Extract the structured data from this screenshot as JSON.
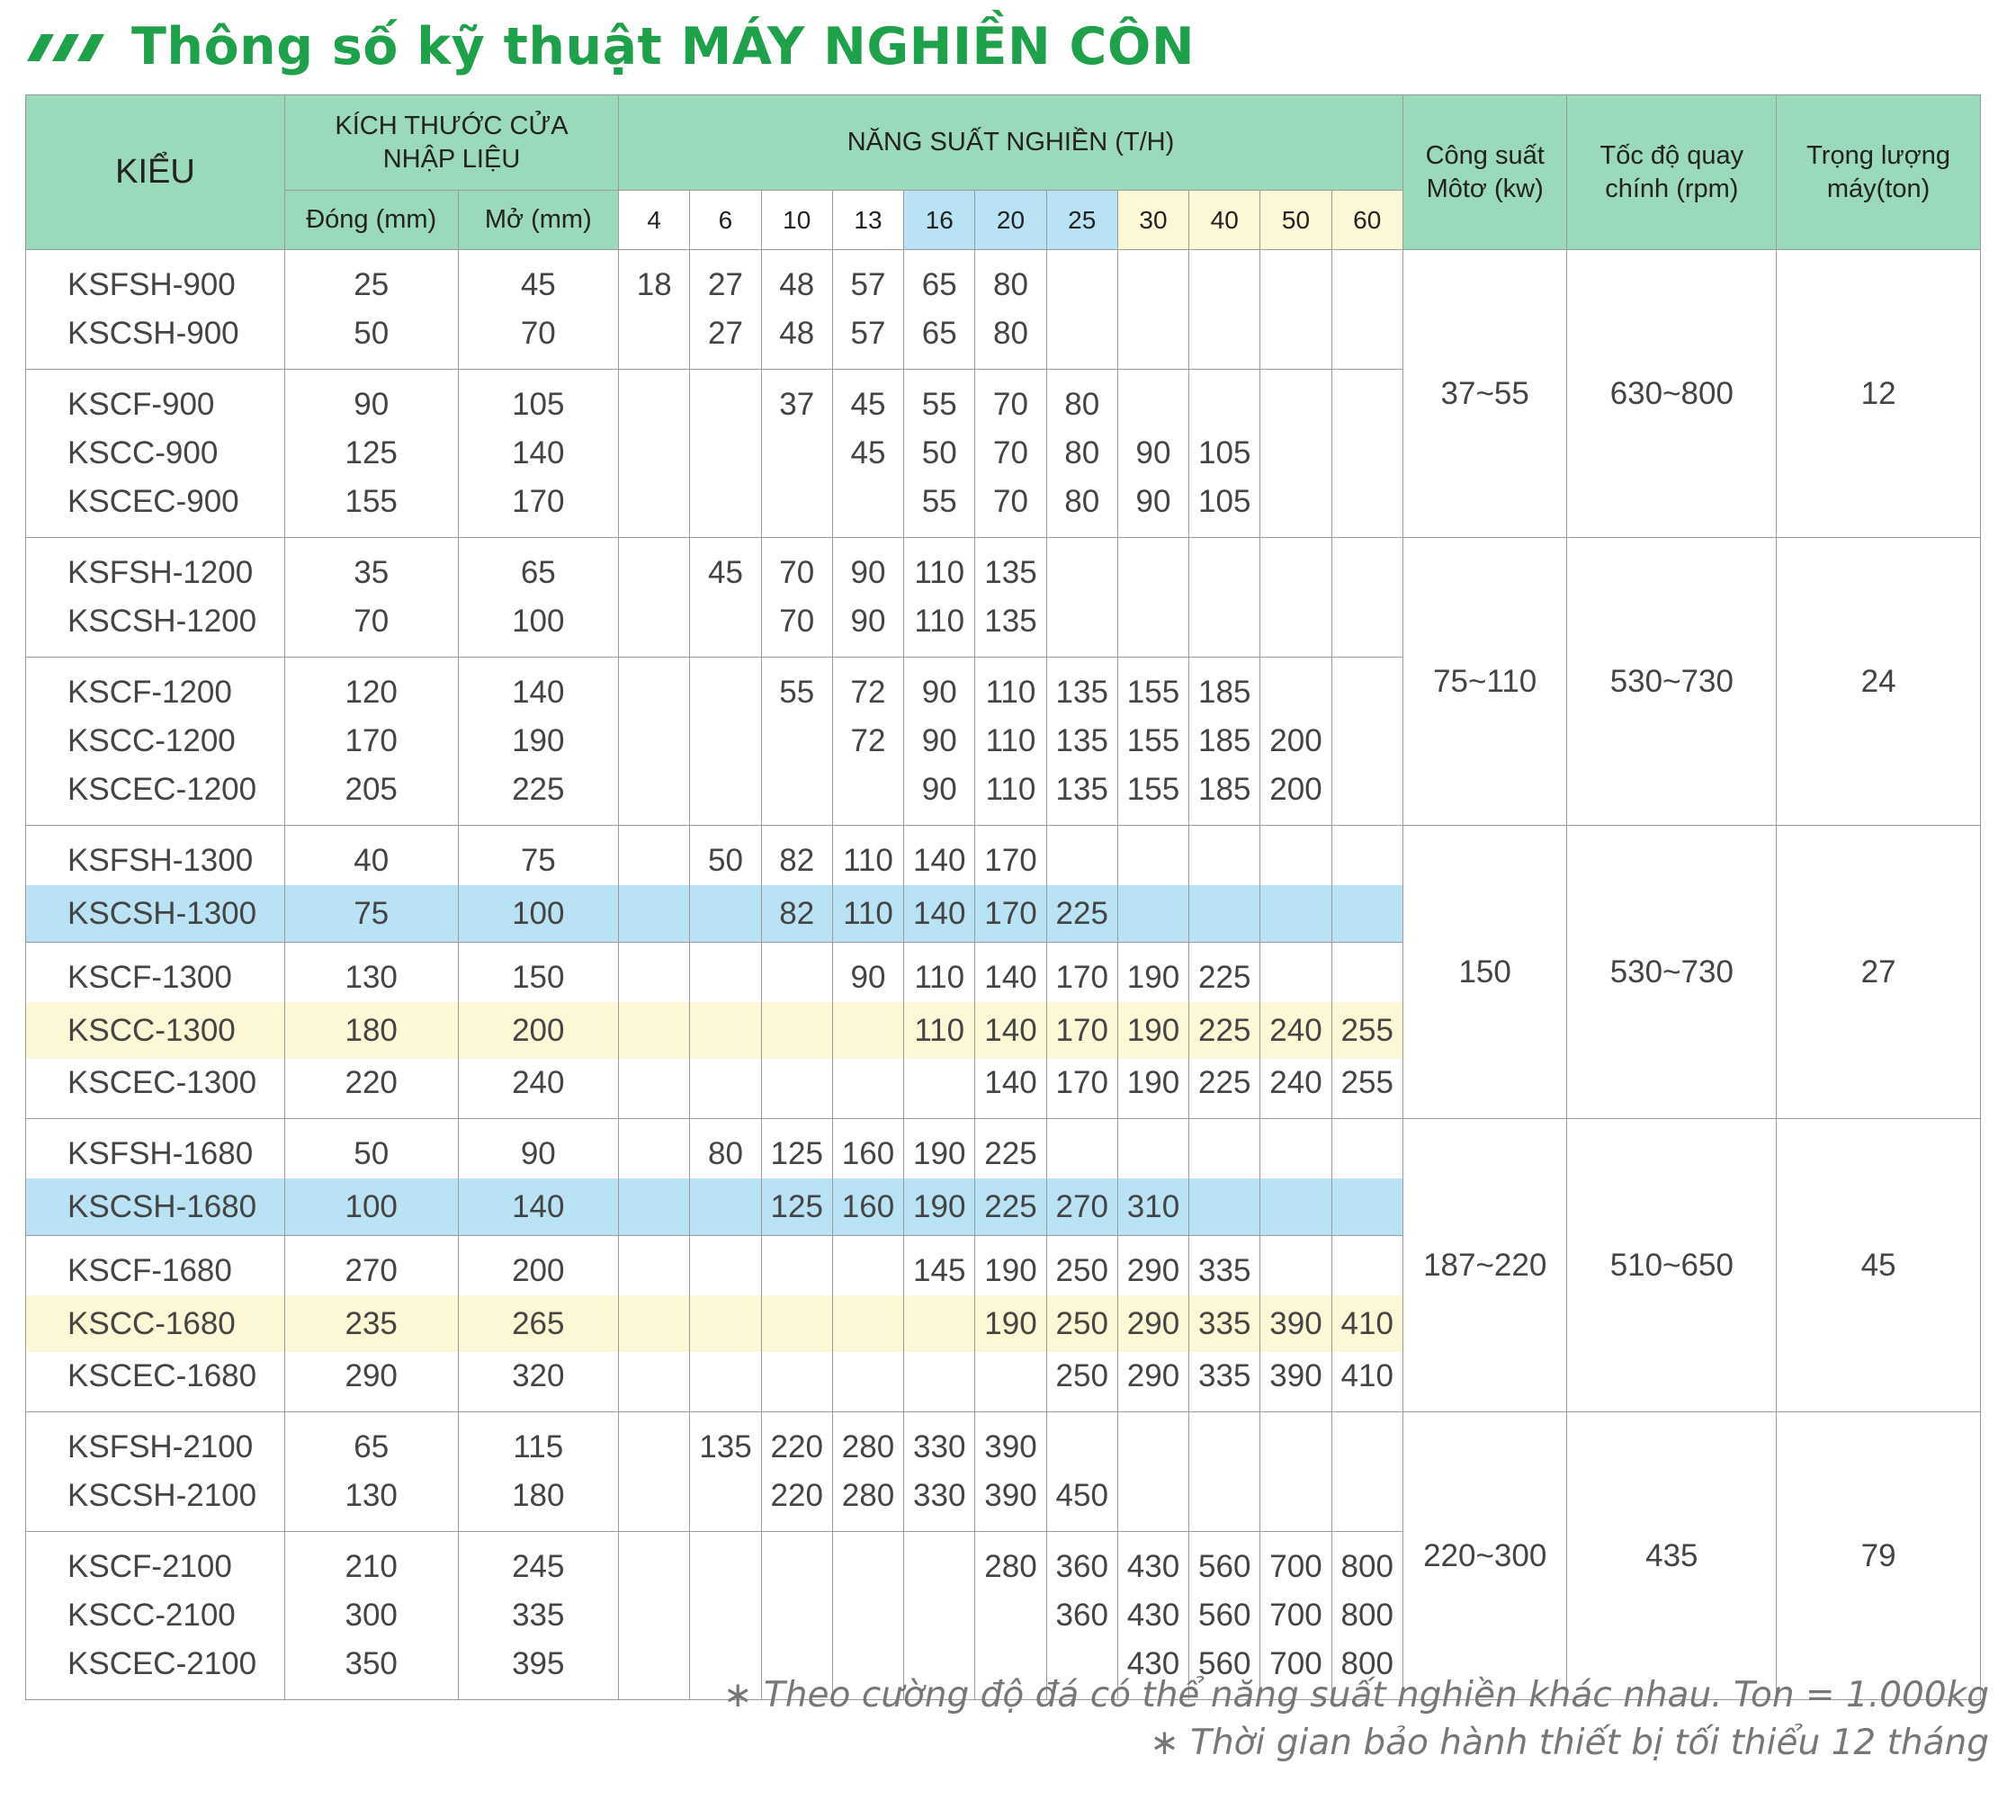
{
  "title": "Thông số kỹ thuật MÁY NGHIỀN CÔN",
  "colors": {
    "header_green": "#9ad9b9",
    "title_green": "#1fa04b",
    "highlight_blue": "#b9e3f5",
    "highlight_yellow": "#fcf7d5"
  },
  "header": {
    "model": "KIỂU",
    "feed_opening": "KÍCH THƯỚC CỬA NHẬP LIỆU",
    "closed": "Đóng (mm)",
    "open": "Mở (mm)",
    "capacity": "NĂNG SUẤT NGHIỀN (T/H)",
    "motor": "Công suất Môtơ (kw)",
    "speed": "Tốc độ quay chính (rpm)",
    "weight": "Trọng lượng máy(ton)"
  },
  "throughput": [
    {
      "label": "4",
      "tint": "none"
    },
    {
      "label": "6",
      "tint": "none"
    },
    {
      "label": "10",
      "tint": "none"
    },
    {
      "label": "13",
      "tint": "none"
    },
    {
      "label": "16",
      "tint": "blue"
    },
    {
      "label": "20",
      "tint": "blue"
    },
    {
      "label": "25",
      "tint": "blue"
    },
    {
      "label": "30",
      "tint": "yellow"
    },
    {
      "label": "40",
      "tint": "yellow"
    },
    {
      "label": "50",
      "tint": "yellow"
    },
    {
      "label": "60",
      "tint": "yellow"
    }
  ],
  "groups": [
    {
      "motor": "37~55",
      "speed": "630~800",
      "weight": "12",
      "subgroups": [
        {
          "rows": [
            {
              "model": "KSFSH-900",
              "closed": "25",
              "open": "45",
              "hl": "none",
              "cap": [
                "18",
                "27",
                "48",
                "57",
                "65",
                "80",
                "",
                "",
                "",
                "",
                ""
              ]
            },
            {
              "model": "KSCSH-900",
              "closed": "50",
              "open": "70",
              "hl": "none",
              "cap": [
                "",
                "27",
                "48",
                "57",
                "65",
                "80",
                "",
                "",
                "",
                "",
                ""
              ]
            }
          ]
        },
        {
          "rows": [
            {
              "model": "KSCF-900",
              "closed": "90",
              "open": "105",
              "hl": "none",
              "cap": [
                "",
                "",
                "37",
                "45",
                "55",
                "70",
                "80",
                "",
                "",
                "",
                ""
              ]
            },
            {
              "model": "KSCC-900",
              "closed": "125",
              "open": "140",
              "hl": "none",
              "cap": [
                "",
                "",
                "",
                "45",
                "50",
                "70",
                "80",
                "90",
                "105",
                "",
                ""
              ]
            },
            {
              "model": "KSCEC-900",
              "closed": "155",
              "open": "170",
              "hl": "none",
              "cap": [
                "",
                "",
                "",
                "",
                "55",
                "70",
                "80",
                "90",
                "105",
                "",
                ""
              ]
            }
          ]
        }
      ]
    },
    {
      "motor": "75~110",
      "speed": "530~730",
      "weight": "24",
      "subgroups": [
        {
          "rows": [
            {
              "model": "KSFSH-1200",
              "closed": "35",
              "open": "65",
              "hl": "none",
              "cap": [
                "",
                "45",
                "70",
                "90",
                "110",
                "135",
                "",
                "",
                "",
                "",
                ""
              ]
            },
            {
              "model": "KSCSH-1200",
              "closed": "70",
              "open": "100",
              "hl": "none",
              "cap": [
                "",
                "",
                "70",
                "90",
                "110",
                "135",
                "",
                "",
                "",
                "",
                ""
              ]
            }
          ]
        },
        {
          "rows": [
            {
              "model": "KSCF-1200",
              "closed": "120",
              "open": "140",
              "hl": "none",
              "cap": [
                "",
                "",
                "55",
                "72",
                "90",
                "110",
                "135",
                "155",
                "185",
                "",
                ""
              ]
            },
            {
              "model": "KSCC-1200",
              "closed": "170",
              "open": "190",
              "hl": "none",
              "cap": [
                "",
                "",
                "",
                "72",
                "90",
                "110",
                "135",
                "155",
                "185",
                "200",
                ""
              ]
            },
            {
              "model": "KSCEC-1200",
              "closed": "205",
              "open": "225",
              "hl": "none",
              "cap": [
                "",
                "",
                "",
                "",
                "90",
                "110",
                "135",
                "155",
                "185",
                "200",
                ""
              ]
            }
          ]
        }
      ]
    },
    {
      "motor": "150",
      "speed": "530~730",
      "weight": "27",
      "subgroups": [
        {
          "rows": [
            {
              "model": "KSFSH-1300",
              "closed": "40",
              "open": "75",
              "hl": "none",
              "cap": [
                "",
                "50",
                "82",
                "110",
                "140",
                "170",
                "",
                "",
                "",
                "",
                ""
              ]
            },
            {
              "model": "KSCSH-1300",
              "closed": "75",
              "open": "100",
              "hl": "blue",
              "cap": [
                "",
                "",
                "82",
                "110",
                "140",
                "170",
                "225",
                "",
                "",
                "",
                ""
              ]
            }
          ]
        },
        {
          "rows": [
            {
              "model": "KSCF-1300",
              "closed": "130",
              "open": "150",
              "hl": "none",
              "cap": [
                "",
                "",
                "",
                "90",
                "110",
                "140",
                "170",
                "190",
                "225",
                "",
                ""
              ]
            },
            {
              "model": "KSCC-1300",
              "closed": "180",
              "open": "200",
              "hl": "yellow",
              "cap": [
                "",
                "",
                "",
                "",
                "110",
                "140",
                "170",
                "190",
                "225",
                "240",
                "255"
              ]
            },
            {
              "model": "KSCEC-1300",
              "closed": "220",
              "open": "240",
              "hl": "none",
              "cap": [
                "",
                "",
                "",
                "",
                "",
                "140",
                "170",
                "190",
                "225",
                "240",
                "255"
              ]
            }
          ]
        }
      ]
    },
    {
      "motor": "187~220",
      "speed": "510~650",
      "weight": "45",
      "subgroups": [
        {
          "rows": [
            {
              "model": "KSFSH-1680",
              "closed": "50",
              "open": "90",
              "hl": "none",
              "cap": [
                "",
                "80",
                "125",
                "160",
                "190",
                "225",
                "",
                "",
                "",
                "",
                ""
              ]
            },
            {
              "model": "KSCSH-1680",
              "closed": "100",
              "open": "140",
              "hl": "blue",
              "cap": [
                "",
                "",
                "125",
                "160",
                "190",
                "225",
                "270",
                "310",
                "",
                "",
                ""
              ]
            }
          ]
        },
        {
          "rows": [
            {
              "model": "KSCF-1680",
              "closed": "270",
              "open": "200",
              "hl": "none",
              "cap": [
                "",
                "",
                "",
                "",
                "145",
                "190",
                "250",
                "290",
                "335",
                "",
                ""
              ]
            },
            {
              "model": "KSCC-1680",
              "closed": "235",
              "open": "265",
              "hl": "yellow",
              "cap": [
                "",
                "",
                "",
                "",
                "",
                "190",
                "250",
                "290",
                "335",
                "390",
                "410"
              ]
            },
            {
              "model": "KSCEC-1680",
              "closed": "290",
              "open": "320",
              "hl": "none",
              "cap": [
                "",
                "",
                "",
                "",
                "",
                "",
                "250",
                "290",
                "335",
                "390",
                "410"
              ]
            }
          ]
        }
      ]
    },
    {
      "motor": "220~300",
      "speed": "435",
      "weight": "79",
      "subgroups": [
        {
          "rows": [
            {
              "model": "KSFSH-2100",
              "closed": "65",
              "open": "115",
              "hl": "none",
              "cap": [
                "",
                "135",
                "220",
                "280",
                "330",
                "390",
                "",
                "",
                "",
                "",
                ""
              ]
            },
            {
              "model": "KSCSH-2100",
              "closed": "130",
              "open": "180",
              "hl": "none",
              "cap": [
                "",
                "",
                "220",
                "280",
                "330",
                "390",
                "450",
                "",
                "",
                "",
                ""
              ]
            }
          ]
        },
        {
          "rows": [
            {
              "model": "KSCF-2100",
              "closed": "210",
              "open": "245",
              "hl": "none",
              "cap": [
                "",
                "",
                "",
                "",
                "",
                "280",
                "360",
                "430",
                "560",
                "700",
                "800"
              ]
            },
            {
              "model": "KSCC-2100",
              "closed": "300",
              "open": "335",
              "hl": "none",
              "cap": [
                "",
                "",
                "",
                "",
                "",
                "",
                "360",
                "430",
                "560",
                "700",
                "800"
              ]
            },
            {
              "model": "KSCEC-2100",
              "closed": "350",
              "open": "395",
              "hl": "none",
              "cap": [
                "",
                "",
                "",
                "",
                "",
                "",
                "",
                "430",
                "560",
                "700",
                "800"
              ]
            }
          ]
        }
      ]
    }
  ],
  "notes": [
    "∗ Theo cường độ đá có thể năng suất nghiền khác nhau. Ton = 1.000kg",
    "∗ Thời gian bảo hành thiết bị tối thiểu 12 tháng"
  ]
}
